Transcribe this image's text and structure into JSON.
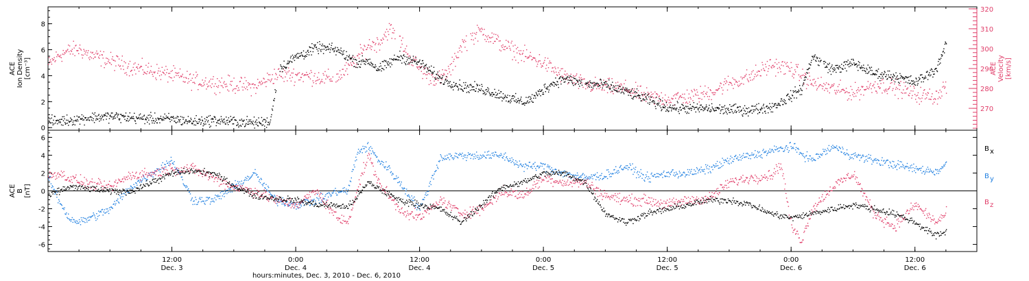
{
  "colors": {
    "black": "#000000",
    "red": "#e03c68",
    "blue": "#1f7fe0"
  },
  "chart_data": [
    {
      "type": "scatter",
      "panel": "top",
      "x_axis": {
        "xlim_hours": [
          0,
          90
        ],
        "title": "hours:minutes, Dec.  3, 2010 - Dec.  6, 2010",
        "ticks": [
          {
            "hour": 12,
            "time": "12:00",
            "date": "Dec. 3"
          },
          {
            "hour": 24,
            "time": "0:00",
            "date": "Dec. 4"
          },
          {
            "hour": 36,
            "time": "12:00",
            "date": "Dec. 4"
          },
          {
            "hour": 48,
            "time": "0:00",
            "date": "Dec. 5"
          },
          {
            "hour": 60,
            "time": "12:00",
            "date": "Dec. 5"
          },
          {
            "hour": 72,
            "time": "0:00",
            "date": "Dec. 6"
          },
          {
            "hour": 84,
            "time": "12:00",
            "date": "Dec. 6"
          }
        ],
        "minor_per_major": 4
      },
      "y_left": {
        "label_lines": [
          "ACE",
          "Ion Density",
          "[cm⁻³]"
        ],
        "ylim": [
          -0.2,
          9.3
        ],
        "ticks": [
          "0",
          "2",
          "4",
          "6",
          "8"
        ]
      },
      "y_right": {
        "label_lines": [
          "ACE",
          "Velocity",
          "[km/s]"
        ],
        "ylim": [
          259,
          321
        ],
        "ticks": [
          "270",
          "280",
          "290",
          "300",
          "310",
          "320"
        ]
      },
      "series": [
        {
          "color": "black",
          "axis": "left",
          "gaps": [
            [
              22.1,
              22.4
            ],
            [
              51.7,
              52.0
            ],
            [
              74.9,
              75.1
            ]
          ],
          "x": [
            0,
            2,
            4,
            6,
            8,
            10,
            12,
            14,
            16,
            18,
            20,
            21.5,
            22.3,
            24,
            25,
            26,
            28,
            30,
            31,
            32,
            34,
            36,
            38,
            40,
            42,
            44,
            45,
            46,
            47,
            48,
            49,
            50,
            51,
            52,
            54,
            56,
            58,
            60,
            62,
            64,
            66,
            68,
            70,
            71,
            72,
            73,
            74,
            75,
            76,
            78,
            80,
            82,
            84,
            86,
            87
          ],
          "y": [
            0.5,
            0.6,
            0.8,
            0.9,
            0.8,
            0.7,
            0.7,
            0.5,
            0.6,
            0.5,
            0.4,
            0.5,
            4.5,
            5.5,
            5.8,
            6.2,
            6.0,
            5.0,
            5.2,
            4.5,
            5.5,
            5.0,
            3.8,
            3.2,
            3.0,
            2.5,
            2.2,
            2.0,
            2.3,
            3.0,
            3.5,
            3.8,
            3.6,
            3.4,
            3.3,
            2.8,
            2.2,
            1.6,
            1.5,
            1.5,
            1.4,
            1.4,
            1.6,
            2.0,
            2.5,
            3.0,
            5.5,
            5.0,
            4.5,
            5.0,
            4.2,
            4.0,
            3.5,
            4.5,
            6.5
          ]
        },
        {
          "color": "red",
          "axis": "right",
          "gaps": [
            [
              27.6,
              27.8
            ],
            [
              33.6,
              34.0
            ],
            [
              40.6,
              40.9
            ]
          ],
          "x": [
            0,
            1,
            2,
            3,
            4,
            6,
            8,
            10,
            12,
            14,
            16,
            18,
            20,
            21,
            22,
            23,
            24,
            26,
            27,
            28,
            29,
            30,
            31,
            32,
            33,
            34,
            35,
            36,
            37,
            38,
            39,
            40,
            41,
            42,
            44,
            46,
            48,
            50,
            52,
            54,
            56,
            58,
            60,
            62,
            64,
            66,
            68,
            70,
            72,
            74,
            76,
            78,
            80,
            82,
            84,
            86,
            87
          ],
          "y": [
            292,
            297,
            299,
            300,
            297,
            294,
            291,
            289,
            287,
            284,
            283,
            282,
            281,
            284,
            287,
            287,
            287,
            286,
            285,
            286,
            290,
            296,
            302,
            303,
            310,
            305,
            296,
            290,
            286,
            285,
            290,
            302,
            306,
            309,
            302,
            297,
            293,
            286,
            282,
            281,
            280,
            276,
            275,
            276,
            278,
            283,
            286,
            292,
            290,
            283,
            280,
            278,
            282,
            281,
            277,
            276,
            282
          ]
        }
      ]
    },
    {
      "type": "scatter",
      "panel": "bottom",
      "y_left": {
        "label_lines": [
          "ACE",
          "B",
          "[nT]"
        ],
        "ylim": [
          -6.8,
          6.8
        ],
        "ticks": [
          "-6",
          "-4",
          "-2",
          "0",
          "2",
          "4",
          "6"
        ],
        "zero_line": true
      },
      "legend": [
        {
          "label": "B",
          "sub": "x",
          "color": "black"
        },
        {
          "label": "B",
          "sub": "y",
          "color": "blue"
        },
        {
          "label": "B",
          "sub": "z",
          "color": "red"
        }
      ],
      "series": [
        {
          "name": "Bx",
          "color": "black",
          "x": [
            0,
            2,
            4,
            6,
            8,
            10,
            12,
            14,
            16,
            18,
            20,
            22,
            24,
            26,
            28,
            29,
            30,
            31,
            32,
            34,
            36,
            38,
            40,
            42,
            44,
            46,
            48,
            50,
            52,
            54,
            56,
            58,
            60,
            62,
            64,
            66,
            68,
            70,
            72,
            74,
            76,
            78,
            80,
            82,
            84,
            86,
            87
          ],
          "y": [
            -0.5,
            0.5,
            0.3,
            0.0,
            0.0,
            1.0,
            2.0,
            2.3,
            2.0,
            0.6,
            -0.5,
            -0.8,
            -1.0,
            -1.5,
            -1.6,
            -1.8,
            -0.5,
            1.0,
            0.3,
            -1.0,
            -1.5,
            -2.0,
            -3.5,
            -1.5,
            0.5,
            1.0,
            2.0,
            2.0,
            1.0,
            -2.5,
            -3.5,
            -2.5,
            -2.0,
            -1.5,
            -1.0,
            -1.0,
            -1.5,
            -2.5,
            -3.0,
            -2.5,
            -2.0,
            -1.5,
            -2.0,
            -2.5,
            -3.5,
            -5.0,
            -4.5
          ]
        },
        {
          "name": "By",
          "color": "blue",
          "x": [
            0,
            1,
            2,
            3,
            4,
            6,
            8,
            10,
            12,
            14,
            16,
            18,
            20,
            22,
            24,
            26,
            28,
            29,
            30,
            31,
            32,
            33,
            34,
            36,
            38,
            40,
            42,
            44,
            46,
            48,
            50,
            52,
            54,
            56,
            58,
            60,
            62,
            64,
            66,
            68,
            70,
            72,
            74,
            76,
            78,
            80,
            82,
            84,
            86,
            87
          ],
          "y": [
            1.5,
            -1.0,
            -3.0,
            -3.5,
            -3.0,
            -2.0,
            0.5,
            2.0,
            3.5,
            -1.0,
            -1.0,
            0.5,
            2.0,
            -1.0,
            -1.5,
            -1.0,
            0.0,
            0.0,
            4.5,
            5.0,
            3.5,
            2.5,
            1.0,
            -2.0,
            3.8,
            4.0,
            4.0,
            4.0,
            2.8,
            2.8,
            2.0,
            1.5,
            1.8,
            2.8,
            1.5,
            2.0,
            2.0,
            2.5,
            3.5,
            4.0,
            4.5,
            5.0,
            3.5,
            5.0,
            4.0,
            3.5,
            3.0,
            2.5,
            2.2,
            3.0
          ]
        },
        {
          "name": "Bz",
          "color": "red",
          "x": [
            0,
            1,
            2,
            4,
            6,
            8,
            10,
            12,
            14,
            16,
            18,
            20,
            22,
            24,
            26,
            28,
            29,
            30,
            31,
            32,
            33,
            34,
            36,
            38,
            40,
            42,
            44,
            46,
            48,
            50,
            52,
            54,
            56,
            58,
            60,
            62,
            64,
            66,
            68,
            70,
            71,
            72,
            73,
            74,
            76,
            78,
            80,
            82,
            84,
            86,
            87
          ],
          "y": [
            1.8,
            2.0,
            1.5,
            0.8,
            0.5,
            1.8,
            2.0,
            2.5,
            2.5,
            1.5,
            0.5,
            0.0,
            -1.0,
            -1.5,
            0.0,
            -3.0,
            -3.5,
            0.5,
            4.0,
            1.0,
            -0.5,
            -2.0,
            -3.0,
            -1.0,
            -2.5,
            -2.0,
            0.0,
            -0.5,
            1.5,
            1.0,
            1.0,
            -0.5,
            -1.0,
            -1.0,
            -1.5,
            -1.0,
            -0.8,
            1.0,
            1.5,
            1.8,
            3.0,
            -4.0,
            -5.5,
            -2.0,
            0.5,
            2.0,
            -2.5,
            -4.0,
            -1.5,
            -3.5,
            -2.5
          ]
        }
      ]
    }
  ]
}
